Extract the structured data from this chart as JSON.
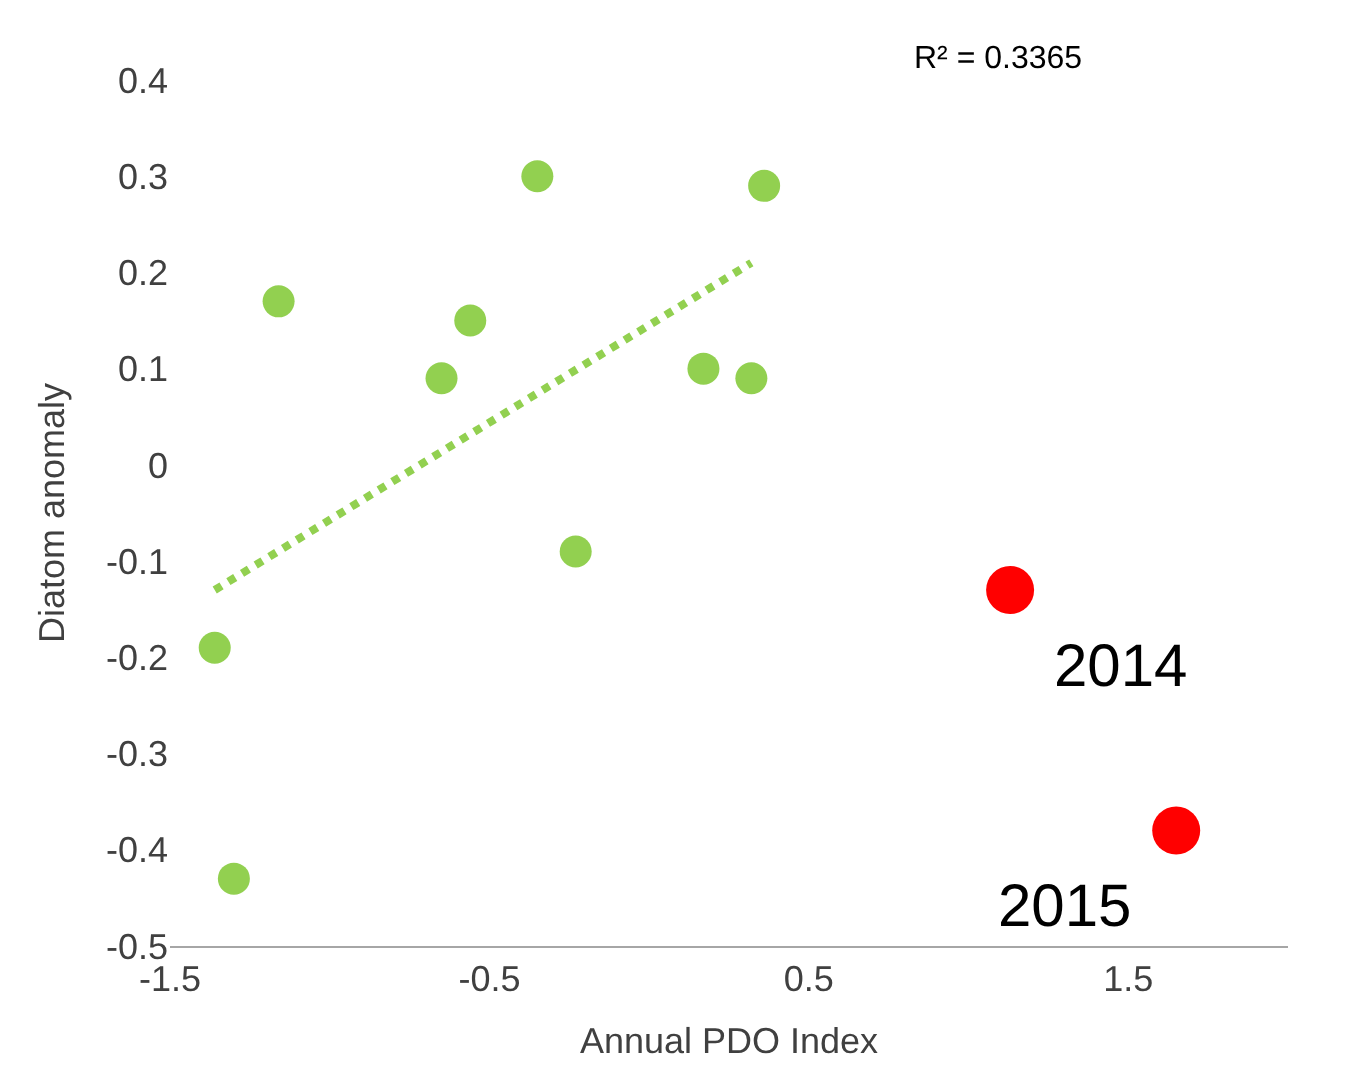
{
  "chart_data": {
    "type": "scatter",
    "xlabel": "Annual PDO Index",
    "ylabel": "Diatom anomaly",
    "series": [
      {
        "color": "#92d050",
        "x": [
          -1.16,
          -0.35,
          0.36,
          -0.56,
          -0.65,
          0.17,
          0.32,
          -0.23,
          -1.36,
          -1.3
        ],
        "values": [
          0.17,
          0.3,
          0.29,
          0.15,
          0.09,
          0.1,
          0.09,
          -0.09,
          -0.19,
          -0.43
        ]
      },
      {
        "color": "#ff0000",
        "x": [
          1.13,
          1.65
        ],
        "values": [
          -0.13,
          -0.38
        ]
      },
      {
        "type": "line",
        "color": "#92d050",
        "line_style": "dotted",
        "marker": "none",
        "x": [
          -1.36,
          0.32
        ],
        "values": [
          -0.13,
          0.21
        ]
      }
    ],
    "annotations": [
      "R² = 0.3365",
      {
        "text": "2014",
        "x": 1.13,
        "y": -0.13
      },
      {
        "text": "2015",
        "x": 1.65,
        "y": -0.38
      }
    ],
    "xlim": [
      -1.5,
      2.0
    ],
    "xticks": [
      -1.5,
      -0.5,
      0.5,
      1.5
    ],
    "ylim": [
      -0.5,
      0.4
    ],
    "yticks": [
      0.4,
      0.3,
      0.2,
      0.1,
      0,
      -0.1,
      -0.2,
      -0.3,
      -0.4,
      -0.5
    ],
    "marker": "circle"
  }
}
